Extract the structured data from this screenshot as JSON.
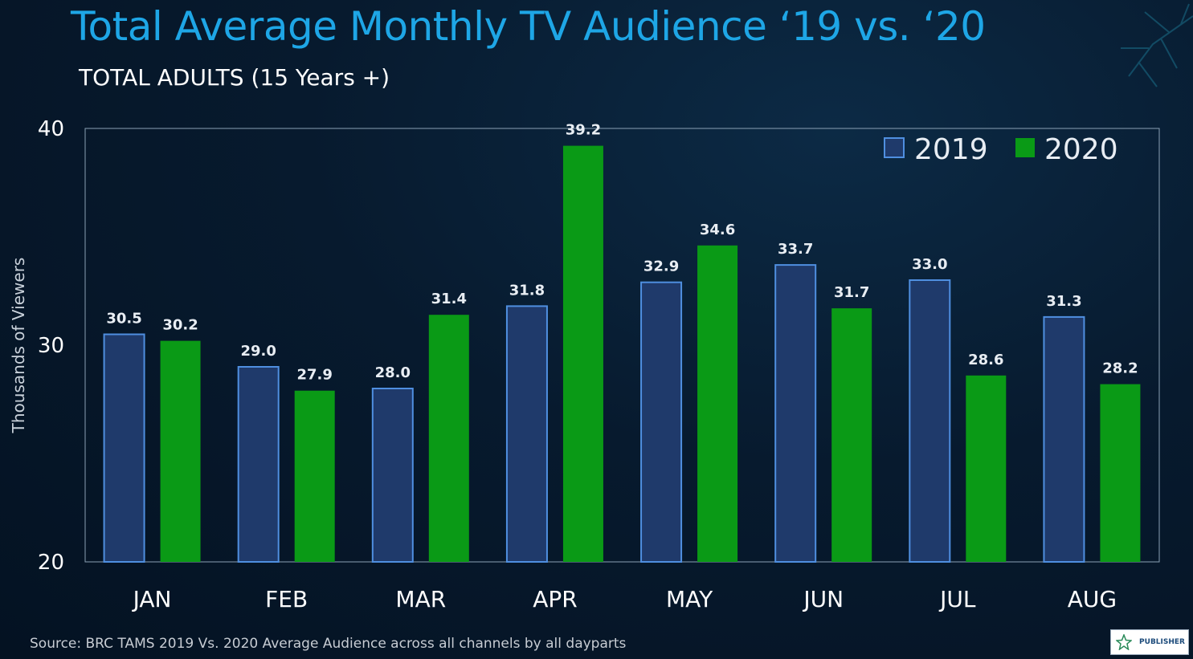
{
  "title": "Total Average Monthly TV Audience  ‘19 vs. ‘20",
  "subtitle": "TOTAL ADULTS (15 Years +)",
  "source": "Source: BRC TAMS 2019 Vs. 2020 Average Audience across all channels by all dayparts",
  "logo_text": "PUBLISHER",
  "colors": {
    "title": "#1ea6e6",
    "bar_2019": "#1f3a6b",
    "bar_2019_border": "#4f8fe0",
    "bar_2020": "#0a9a16",
    "axis_text": "#ffffff",
    "value_label": "#e8edf3"
  },
  "icons": {
    "logo": "star-icon",
    "decoration": "coral-decoration"
  },
  "chart_data": {
    "type": "bar",
    "categories": [
      "JAN",
      "FEB",
      "MAR",
      "APR",
      "MAY",
      "JUN",
      "JUL",
      "AUG"
    ],
    "series": [
      {
        "name": "2019",
        "values": [
          30.5,
          29.0,
          28.0,
          31.8,
          32.9,
          33.7,
          33.0,
          31.3
        ]
      },
      {
        "name": "2020",
        "values": [
          30.2,
          27.9,
          31.4,
          39.2,
          34.6,
          31.7,
          28.6,
          28.2
        ]
      }
    ],
    "value_labels": {
      "2019": [
        "30.5",
        "29.0",
        "28.0",
        "31.8",
        "32.9",
        "33.7",
        "33.0",
        "31.3"
      ],
      "2020": [
        "30.2",
        "27.9",
        "31.4",
        "39.2",
        "34.6",
        "31.7",
        "28.6",
        "28.2"
      ]
    },
    "ylabel": "Thousands  of Viewers",
    "xlabel": "",
    "ylim": [
      20,
      40
    ],
    "yticks": [
      "20",
      "30",
      "40"
    ],
    "legend": {
      "position": "top-right"
    },
    "grid": false
  }
}
